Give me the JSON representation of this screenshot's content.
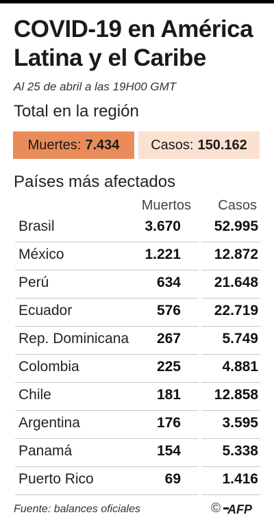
{
  "header": {
    "title_line1": "COVID-19 en América",
    "title_line2": "Latina y el Caribe",
    "subtitle": "Al 25 de abril a las 19H00 GMT"
  },
  "totals": {
    "heading": "Total en la región",
    "deaths_label": "Muertes:",
    "deaths_value": "7.434",
    "cases_label": "Casos:",
    "cases_value": "150.162",
    "deaths_color": "#e98c5a",
    "cases_color": "#fce0d0"
  },
  "countries": {
    "heading": "Países más afectados",
    "col_deaths": "Muertos",
    "col_cases": "Casos"
  },
  "chart_data": {
    "type": "table",
    "columns": [
      "",
      "Muertos",
      "Casos"
    ],
    "rows": [
      {
        "country": "Brasil",
        "deaths": "3.670",
        "cases": "52.995"
      },
      {
        "country": "México",
        "deaths": "1.221",
        "cases": "12.872"
      },
      {
        "country": "Perú",
        "deaths": "634",
        "cases": "21.648"
      },
      {
        "country": "Ecuador",
        "deaths": "576",
        "cases": "22.719"
      },
      {
        "country": "Rep. Dominicana",
        "deaths": "267",
        "cases": "5.749"
      },
      {
        "country": "Colombia",
        "deaths": "225",
        "cases": "4.881"
      },
      {
        "country": "Chile",
        "deaths": "181",
        "cases": "12.858"
      },
      {
        "country": "Argentina",
        "deaths": "176",
        "cases": "3.595"
      },
      {
        "country": "Panamá",
        "deaths": "154",
        "cases": "5.338"
      },
      {
        "country": "Puerto Rico",
        "deaths": "69",
        "cases": "1.416"
      }
    ]
  },
  "footer": {
    "source": "Fuente: balances oficiales",
    "copyright": "©",
    "logo": "AFP"
  }
}
